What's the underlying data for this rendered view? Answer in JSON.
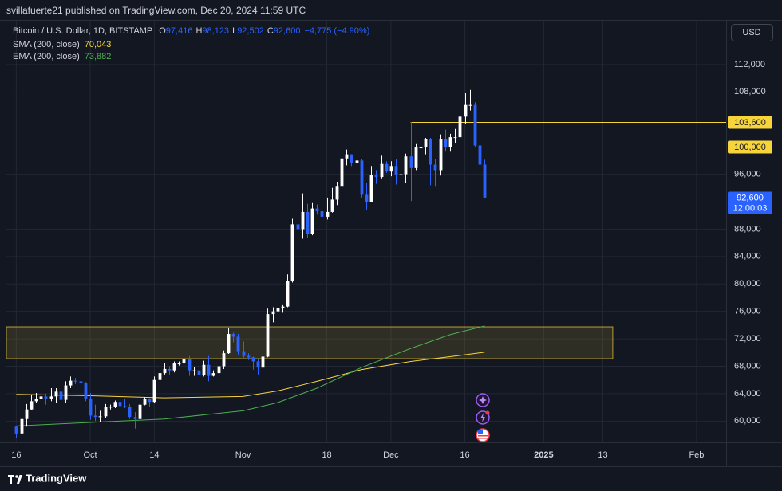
{
  "header": "svillafuerte21 published on TradingView.com, Dec 20, 2024 11:59 UTC",
  "footer": "TradingView",
  "chart_data": {
    "type": "candlestick",
    "symbol": "Bitcoin / U.S. Dollar, 1D, BITSTAMP",
    "currency": "USD",
    "quote": [
      {
        "key": "O",
        "value": 97416,
        "label": "97,416"
      },
      {
        "key": "H",
        "value": 98123,
        "label": "98,123"
      },
      {
        "key": "L",
        "value": 92502,
        "label": "92,502"
      },
      {
        "key": "C",
        "value": 92600,
        "label": "92,600"
      }
    ],
    "change": {
      "value": -4775,
      "label": "−4,775"
    },
    "change_pct": {
      "value": -4.9,
      "label": "(−4.90%)"
    },
    "up_color": "#ffffff",
    "down_color": "#2962ff",
    "x": [
      "2024-09-16",
      "2024-09-17",
      "2024-09-18",
      "2024-09-19",
      "2024-09-20",
      "2024-09-21",
      "2024-09-22",
      "2024-09-23",
      "2024-09-24",
      "2024-09-25",
      "2024-09-26",
      "2024-09-27",
      "2024-09-28",
      "2024-09-29",
      "2024-09-30",
      "2024-10-01",
      "2024-10-02",
      "2024-10-03",
      "2024-10-04",
      "2024-10-05",
      "2024-10-06",
      "2024-10-07",
      "2024-10-08",
      "2024-10-09",
      "2024-10-10",
      "2024-10-11",
      "2024-10-12",
      "2024-10-13",
      "2024-10-14",
      "2024-10-15",
      "2024-10-16",
      "2024-10-17",
      "2024-10-18",
      "2024-10-19",
      "2024-10-20",
      "2024-10-21",
      "2024-10-22",
      "2024-10-23",
      "2024-10-24",
      "2024-10-25",
      "2024-10-26",
      "2024-10-27",
      "2024-10-28",
      "2024-10-29",
      "2024-10-30",
      "2024-10-31",
      "2024-11-01",
      "2024-11-02",
      "2024-11-03",
      "2024-11-04",
      "2024-11-05",
      "2024-11-06",
      "2024-11-07",
      "2024-11-08",
      "2024-11-09",
      "2024-11-10",
      "2024-11-11",
      "2024-11-12",
      "2024-11-13",
      "2024-11-14",
      "2024-11-15",
      "2024-11-16",
      "2024-11-17",
      "2024-11-18",
      "2024-11-19",
      "2024-11-20",
      "2024-11-21",
      "2024-11-22",
      "2024-11-23",
      "2024-11-24",
      "2024-11-25",
      "2024-11-26",
      "2024-11-27",
      "2024-11-28",
      "2024-11-29",
      "2024-11-30",
      "2024-12-01",
      "2024-12-02",
      "2024-12-03",
      "2024-12-04",
      "2024-12-05",
      "2024-12-06",
      "2024-12-07",
      "2024-12-08",
      "2024-12-09",
      "2024-12-10",
      "2024-12-11",
      "2024-12-12",
      "2024-12-13",
      "2024-12-14",
      "2024-12-15",
      "2024-12-16",
      "2024-12-17",
      "2024-12-18",
      "2024-12-19",
      "2024-12-20"
    ],
    "open": [
      59200,
      58200,
      60300,
      61700,
      62900,
      63200,
      63600,
      63300,
      63600,
      64300,
      63100,
      65200,
      65900,
      65800,
      65600,
      63300,
      60800,
      60600,
      60700,
      62100,
      62100,
      62800,
      62200,
      62100,
      60600,
      60300,
      62400,
      63200,
      62800,
      66000,
      67000,
      67600,
      67400,
      68400,
      68400,
      69000,
      67400,
      67400,
      66700,
      68200,
      66600,
      67000,
      68000,
      69900,
      72700,
      72300,
      70200,
      69500,
      69300,
      68700,
      67800,
      69400,
      75600,
      76000,
      76500,
      76700,
      80400,
      88700,
      88000,
      90500,
      87300,
      91000,
      90600,
      89800,
      90500,
      92300,
      94300,
      98300,
      98900,
      97700,
      98000,
      93000,
      91900,
      95900,
      95600,
      97500,
      96400,
      97200,
      95900,
      96000,
      98600,
      96900,
      99900,
      99900,
      101100,
      97400,
      96600,
      101100,
      100000,
      101400,
      101400,
      104400,
      106100,
      106100,
      100200,
      97416
    ],
    "high": [
      59300,
      61300,
      62500,
      63800,
      64100,
      63900,
      64000,
      64800,
      64800,
      64800,
      65800,
      66500,
      66300,
      66100,
      65700,
      64100,
      62400,
      61500,
      62500,
      62400,
      63000,
      64500,
      63200,
      62500,
      61300,
      63400,
      63500,
      63300,
      66500,
      67900,
      68400,
      68000,
      68700,
      68700,
      69400,
      69500,
      67900,
      67500,
      68800,
      69500,
      67400,
      68300,
      70300,
      73600,
      72900,
      72700,
      71600,
      69900,
      69400,
      69000,
      70500,
      76400,
      76600,
      77200,
      76900,
      81400,
      89500,
      89900,
      93200,
      91700,
      91800,
      91600,
      91700,
      92600,
      94000,
      94900,
      99000,
      99600,
      98900,
      98600,
      98200,
      94700,
      97200,
      96600,
      98700,
      97900,
      97900,
      98200,
      96300,
      99000,
      103600,
      100400,
      100500,
      101300,
      101300,
      98200,
      101800,
      102500,
      101900,
      102600,
      105200,
      107800,
      108300,
      106500,
      102800,
      98123
    ],
    "low": [
      57500,
      57600,
      59200,
      61600,
      62700,
      62800,
      62400,
      62900,
      62700,
      62700,
      62700,
      64800,
      65400,
      65400,
      62900,
      60200,
      60000,
      59900,
      60500,
      61700,
      61900,
      62200,
      61900,
      60300,
      58900,
      60000,
      62300,
      62100,
      62700,
      64800,
      66800,
      66800,
      67100,
      68100,
      68000,
      66600,
      66600,
      65300,
      66500,
      65800,
      66500,
      66800,
      67600,
      69800,
      71500,
      69700,
      69000,
      68900,
      67500,
      66800,
      67500,
      69300,
      74400,
      75600,
      75800,
      76600,
      80200,
      85200,
      86600,
      86700,
      87100,
      90100,
      89100,
      89400,
      90400,
      91500,
      94000,
      97300,
      97200,
      95800,
      92600,
      90800,
      91900,
      94600,
      95400,
      96200,
      95700,
      94500,
      93600,
      94700,
      92100,
      96600,
      99000,
      98900,
      94400,
      94300,
      95800,
      99300,
      99300,
      100600,
      101200,
      103300,
      105300,
      100000,
      95700,
      92502
    ],
    "close": [
      58200,
      60300,
      61700,
      62900,
      63200,
      63600,
      63300,
      63600,
      64300,
      63100,
      65200,
      65900,
      65800,
      65600,
      63300,
      60800,
      60600,
      60700,
      62100,
      62100,
      62800,
      62200,
      62100,
      60600,
      60300,
      62400,
      63200,
      62800,
      66000,
      67000,
      67600,
      67400,
      68400,
      68400,
      69000,
      67400,
      67400,
      66700,
      68200,
      66600,
      67000,
      68000,
      69900,
      72700,
      72300,
      70200,
      69500,
      69300,
      68700,
      67800,
      69400,
      75600,
      76000,
      76500,
      76700,
      80400,
      88700,
      88000,
      90500,
      87300,
      91000,
      90600,
      89800,
      90500,
      92300,
      94300,
      98300,
      98900,
      97700,
      98000,
      93000,
      91900,
      95900,
      95600,
      97500,
      96400,
      97200,
      95900,
      96000,
      98600,
      96900,
      99900,
      99900,
      101100,
      97400,
      96600,
      101100,
      100000,
      101400,
      101400,
      104400,
      106100,
      106100,
      100200,
      97400,
      92600
    ],
    "lines": [
      {
        "name": "SMA (200, close)",
        "color": "#f7d43a",
        "last": {
          "value": 70043,
          "label": "70,043"
        },
        "x": [
          "2024-09-16",
          "2024-10-01",
          "2024-10-16",
          "2024-11-01",
          "2024-11-08",
          "2024-11-16",
          "2024-11-25",
          "2024-12-05",
          "2024-12-13",
          "2024-12-20"
        ],
        "values": [
          63900,
          63700,
          63400,
          63600,
          64400,
          65800,
          67500,
          68700,
          69400,
          70043
        ]
      },
      {
        "name": "EMA (200, close)",
        "color": "#4caf50",
        "last": {
          "value": 73882,
          "label": "73,882"
        },
        "x": [
          "2024-09-16",
          "2024-10-01",
          "2024-10-16",
          "2024-11-01",
          "2024-11-08",
          "2024-11-16",
          "2024-11-25",
          "2024-12-05",
          "2024-12-13",
          "2024-12-20"
        ],
        "values": [
          59300,
          59800,
          60300,
          61500,
          62700,
          64800,
          67800,
          70600,
          72600,
          73882
        ]
      }
    ],
    "price_lines": [
      {
        "value": 103600,
        "label": "103,600",
        "from": "2024-12-05",
        "color": "#f7d43a"
      },
      {
        "value": 100000,
        "label": "100,000",
        "color": "#f7d43a"
      }
    ],
    "last_price": {
      "value": 92600,
      "label": "92,600",
      "countdown": "12:00:03",
      "color": "#2962ff"
    },
    "zone": {
      "ylim": [
        69100,
        73750
      ],
      "to": "2025-01-15",
      "color": "#f7d43a"
    },
    "xlim": [
      "2024-09-14",
      "2025-02-07"
    ],
    "xticks": [
      {
        "value": "2024-09-16",
        "label": "16"
      },
      {
        "value": "2024-10-01",
        "label": "Oct"
      },
      {
        "value": "2024-10-14",
        "label": "14"
      },
      {
        "value": "2024-11-01",
        "label": "Nov"
      },
      {
        "value": "2024-11-18",
        "label": "18"
      },
      {
        "value": "2024-12-01",
        "label": "Dec"
      },
      {
        "value": "2024-12-16",
        "label": "16"
      },
      {
        "value": "2025-01-01",
        "label": "2025"
      },
      {
        "value": "2025-01-13",
        "label": "13"
      },
      {
        "value": "2025-02-01",
        "label": "Feb"
      }
    ],
    "ylim": [
      56900,
      118500
    ],
    "yticks": [
      {
        "value": 60000,
        "label": "60,000"
      },
      {
        "value": 64000,
        "label": "64,000"
      },
      {
        "value": 68000,
        "label": "68,000"
      },
      {
        "value": 72000,
        "label": "72,000"
      },
      {
        "value": 76000,
        "label": "76,000"
      },
      {
        "value": 80000,
        "label": "80,000"
      },
      {
        "value": 84000,
        "label": "84,000"
      },
      {
        "value": 88000,
        "label": "88,000"
      },
      {
        "value": 96000,
        "label": "96,000"
      },
      {
        "value": 108000,
        "label": "108,000"
      },
      {
        "value": 112000,
        "label": "112,000"
      }
    ],
    "grid": true
  }
}
